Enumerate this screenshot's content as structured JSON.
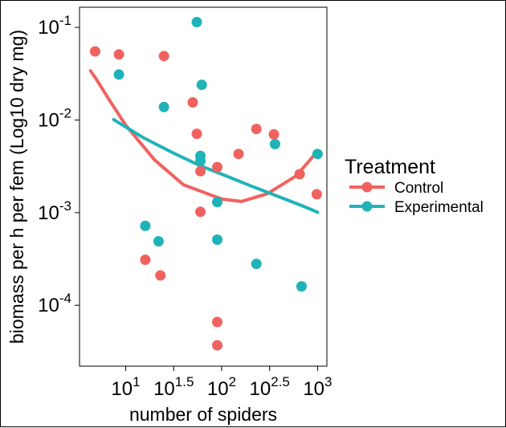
{
  "chart_data": {
    "type": "scatter",
    "xlabel": "number of spiders",
    "ylabel": "biomass per h per fem (Log10 dry mg)",
    "x_scale": "log10",
    "y_scale": "log10",
    "xlim": [
      3.3,
      1250
    ],
    "ylim": [
      2.2e-05,
      0.165
    ],
    "x_ticks": [
      {
        "value": 10,
        "base": "10",
        "exp": "1"
      },
      {
        "value": 31.62,
        "base": "10",
        "exp": "1.5"
      },
      {
        "value": 100,
        "base": "10",
        "exp": "2"
      },
      {
        "value": 316.2,
        "base": "10",
        "exp": "2.5"
      },
      {
        "value": 1000,
        "base": "10",
        "exp": "3"
      }
    ],
    "y_ticks": [
      {
        "value": 0.1,
        "base": "10",
        "exp": "-1"
      },
      {
        "value": 0.01,
        "base": "10",
        "exp": "-2"
      },
      {
        "value": 0.001,
        "base": "10",
        "exp": "-3"
      },
      {
        "value": 0.0001,
        "base": "10",
        "exp": "-4"
      }
    ],
    "grid": false,
    "legend": {
      "title": "Treatment",
      "position": "right",
      "entries": [
        {
          "label": "Control",
          "color": "#F0625F"
        },
        {
          "label": "Experimental",
          "color": "#1FB3B8"
        }
      ]
    },
    "series": [
      {
        "name": "Control",
        "color": "#F0625F",
        "points": [
          {
            "x": 4.8,
            "y": 0.055
          },
          {
            "x": 8.5,
            "y": 0.051
          },
          {
            "x": 25,
            "y": 0.049
          },
          {
            "x": 50,
            "y": 0.0155
          },
          {
            "x": 55,
            "y": 0.0071
          },
          {
            "x": 60,
            "y": 0.0028
          },
          {
            "x": 60,
            "y": 0.00102
          },
          {
            "x": 90,
            "y": 0.0031
          },
          {
            "x": 90,
            "y": 6.6e-05
          },
          {
            "x": 90,
            "y": 3.7e-05
          },
          {
            "x": 150,
            "y": 0.0043
          },
          {
            "x": 230,
            "y": 0.008
          },
          {
            "x": 350,
            "y": 0.007
          },
          {
            "x": 650,
            "y": 0.0026
          },
          {
            "x": 980,
            "y": 0.00158
          },
          {
            "x": 16,
            "y": 0.00031
          },
          {
            "x": 23,
            "y": 0.00021
          }
        ],
        "fit": [
          {
            "x": 4.3,
            "y": 0.034
          },
          {
            "x": 5,
            "y": 0.027
          },
          {
            "x": 7,
            "y": 0.0155
          },
          {
            "x": 10,
            "y": 0.0088
          },
          {
            "x": 20,
            "y": 0.0037
          },
          {
            "x": 40,
            "y": 0.002
          },
          {
            "x": 100,
            "y": 0.0014
          },
          {
            "x": 160,
            "y": 0.00132
          },
          {
            "x": 300,
            "y": 0.0016
          },
          {
            "x": 600,
            "y": 0.0025
          },
          {
            "x": 1000,
            "y": 0.0046
          }
        ]
      },
      {
        "name": "Experimental",
        "color": "#1FB3B8",
        "points": [
          {
            "x": 8.5,
            "y": 0.031
          },
          {
            "x": 55,
            "y": 0.114
          },
          {
            "x": 62,
            "y": 0.024
          },
          {
            "x": 25,
            "y": 0.0138
          },
          {
            "x": 60,
            "y": 0.0041
          },
          {
            "x": 60,
            "y": 0.0036
          },
          {
            "x": 90,
            "y": 0.0013
          },
          {
            "x": 90,
            "y": 0.00051
          },
          {
            "x": 16,
            "y": 0.00072
          },
          {
            "x": 22,
            "y": 0.00049
          },
          {
            "x": 230,
            "y": 0.00028
          },
          {
            "x": 360,
            "y": 0.0055
          },
          {
            "x": 680,
            "y": 0.00016
          },
          {
            "x": 1000,
            "y": 0.0043
          }
        ],
        "fit": [
          {
            "x": 7.5,
            "y": 0.0101
          },
          {
            "x": 15,
            "y": 0.0065
          },
          {
            "x": 30,
            "y": 0.0045
          },
          {
            "x": 60,
            "y": 0.0032
          },
          {
            "x": 100,
            "y": 0.0026
          },
          {
            "x": 200,
            "y": 0.00195
          },
          {
            "x": 400,
            "y": 0.00148
          },
          {
            "x": 700,
            "y": 0.00118
          },
          {
            "x": 1000,
            "y": 0.00101
          }
        ]
      }
    ]
  }
}
